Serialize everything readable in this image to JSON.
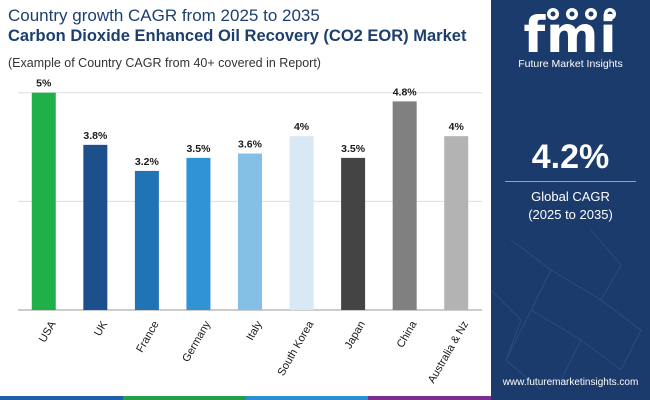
{
  "header": {
    "title_line1": "Country growth CAGR from 2025 to 2035",
    "title_line2": "Carbon Dioxide Enhanced Oil Recovery (CO2 EOR) Market",
    "subtitle": "(Example of Country CAGR from 40+ covered in Report)"
  },
  "chart_data": {
    "type": "bar",
    "title": "Country growth CAGR from 2025 to 2035",
    "categories": [
      "USA",
      "UK",
      "France",
      "Germany",
      "Italy",
      "South Korea",
      "Japan",
      "China",
      "Australia & Nz"
    ],
    "values": [
      5.0,
      3.8,
      3.2,
      3.5,
      3.6,
      4.0,
      3.5,
      4.8,
      4.0
    ],
    "value_labels": [
      "5%",
      "3.8%",
      "3.2%",
      "3.5%",
      "3.6%",
      "4%",
      "3.5%",
      "4.8%",
      "4%"
    ],
    "colors": [
      "#1fb04a",
      "#1d4f8c",
      "#2073b5",
      "#2f93d4",
      "#84c0e6",
      "#d8e8f4",
      "#444444",
      "#808080",
      "#b3b3b3"
    ],
    "ylim": [
      0,
      5.2
    ],
    "gridlines": [
      2.5,
      5.0
    ],
    "xlabel": "",
    "ylabel": ""
  },
  "sidebar": {
    "logo_text": "fmi",
    "logo_subtitle": "Future Market Insights",
    "global_value": "4.2%",
    "global_label_line1": "Global CAGR",
    "global_label_line2": "(2025 to 2035)",
    "website": "www.futuremarketinsights.com"
  },
  "bottom_bar_colors": [
    "#1f5fa8",
    "#23a046",
    "#2d8fd0",
    "#7a2f8e"
  ]
}
